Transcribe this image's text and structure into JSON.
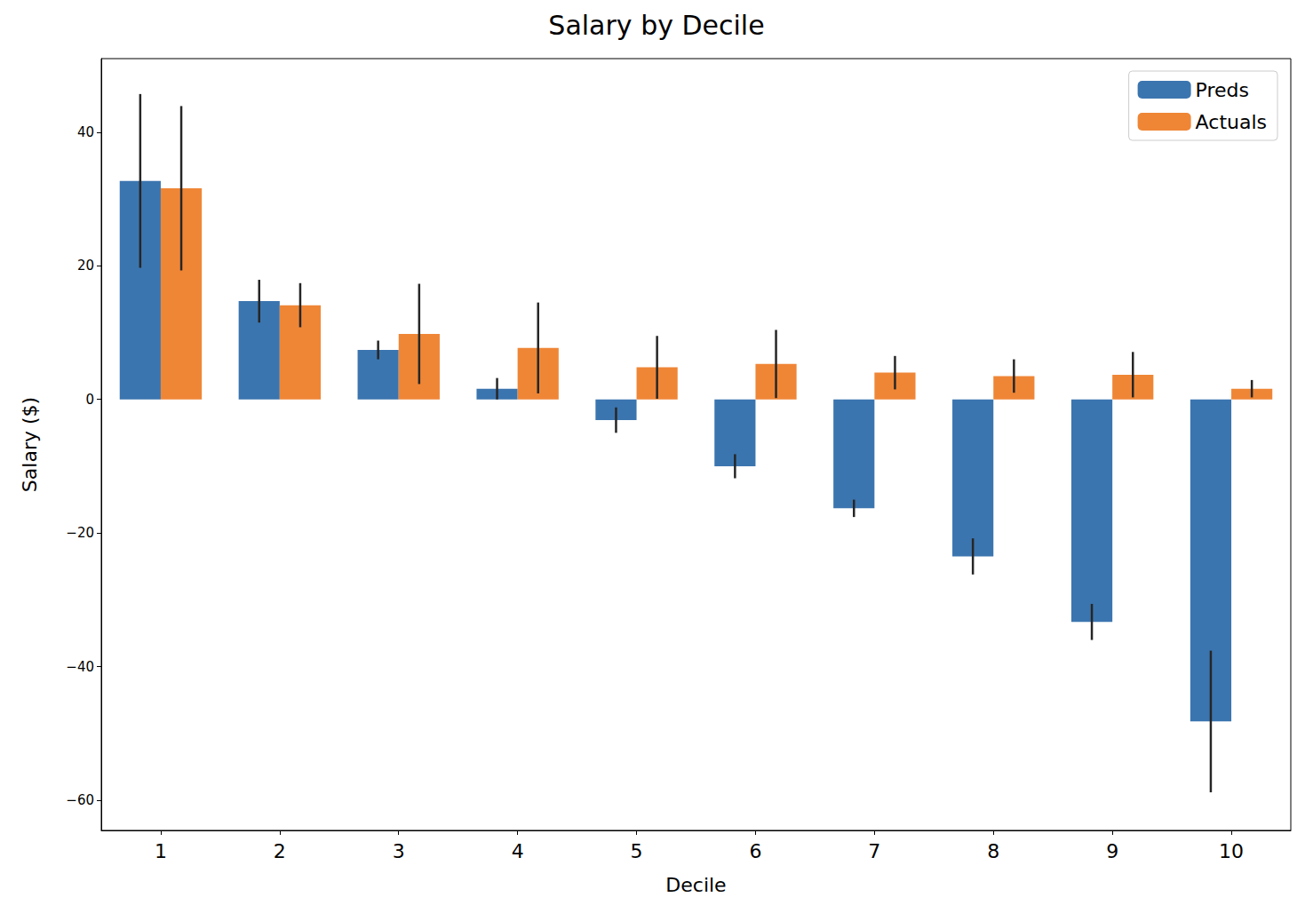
{
  "chart_data": {
    "type": "bar",
    "title": "Salary by Decile",
    "x_label": "Decile",
    "y_label": "Salary ($)",
    "categories": [
      "1",
      "2",
      "3",
      "4",
      "5",
      "6",
      "7",
      "8",
      "9",
      "10"
    ],
    "series": [
      {
        "name": "Preds",
        "color": "#3b75af",
        "values": [
          32.7,
          14.7,
          7.4,
          1.6,
          -3.1,
          -10.0,
          -16.3,
          -23.5,
          -33.3,
          -48.2
        ],
        "errors": [
          13.0,
          3.2,
          1.4,
          1.6,
          1.9,
          1.8,
          1.3,
          2.7,
          2.7,
          10.6
        ]
      },
      {
        "name": "Actuals",
        "color": "#ef8636",
        "values": [
          31.6,
          14.1,
          9.8,
          7.7,
          4.8,
          5.3,
          4.0,
          3.5,
          3.7,
          1.6
        ],
        "errors": [
          12.3,
          3.3,
          7.5,
          6.8,
          4.7,
          5.1,
          2.5,
          2.5,
          3.4,
          1.3
        ]
      }
    ],
    "ylim": [
      -64.5,
      51
    ],
    "yticks": [
      -60,
      -40,
      -20,
      0,
      20,
      40
    ],
    "grid": false,
    "legend": "upper right"
  }
}
